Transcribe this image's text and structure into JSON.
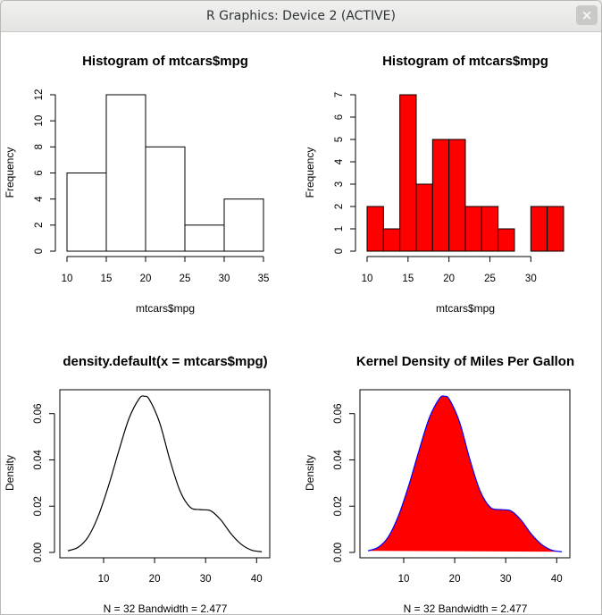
{
  "window": {
    "title": "R Graphics: Device 2 (ACTIVE)",
    "close_glyph": "×"
  },
  "chart_data": [
    {
      "type": "bar",
      "variant": "histogram",
      "title": "Histogram of mtcars$mpg",
      "xlabel": "mtcars$mpg",
      "ylabel": "Frequency",
      "breaks": [
        10,
        15,
        20,
        25,
        30,
        35
      ],
      "values": [
        6,
        12,
        8,
        2,
        4
      ],
      "xlim": [
        10,
        35
      ],
      "ylim": [
        0,
        12
      ],
      "xticks": [
        10,
        15,
        20,
        25,
        30,
        35
      ],
      "yticks": [
        0,
        2,
        4,
        6,
        8,
        10,
        12
      ],
      "fill": "#ffffff",
      "stroke": "#000000"
    },
    {
      "type": "bar",
      "variant": "histogram",
      "title": "Histogram of mtcars$mpg",
      "xlabel": "mtcars$mpg",
      "ylabel": "Frequency",
      "breaks": [
        10,
        12,
        14,
        16,
        18,
        20,
        22,
        24,
        26,
        28,
        30,
        32,
        34
      ],
      "values": [
        2,
        1,
        7,
        3,
        5,
        5,
        2,
        2,
        1,
        0,
        2,
        2
      ],
      "xlim": [
        10,
        34
      ],
      "ylim": [
        0,
        7
      ],
      "xticks": [
        10,
        15,
        20,
        25,
        30
      ],
      "yticks": [
        0,
        1,
        2,
        3,
        4,
        5,
        6,
        7
      ],
      "fill": "#ff0000",
      "stroke": "#000000"
    },
    {
      "type": "line",
      "title": "density.default(x = mtcars$mpg)",
      "xlabel": "N = 32   Bandwidth = 2.477",
      "ylabel": "Density",
      "x": [
        3,
        5,
        7,
        9,
        11,
        13,
        15,
        17,
        18,
        19,
        21,
        23,
        25,
        27,
        29,
        31,
        33,
        35,
        37,
        39,
        41
      ],
      "y": [
        0.0007,
        0.0022,
        0.0068,
        0.016,
        0.029,
        0.044,
        0.058,
        0.0665,
        0.0675,
        0.066,
        0.056,
        0.04,
        0.0265,
        0.0195,
        0.0185,
        0.018,
        0.014,
        0.008,
        0.0035,
        0.001,
        0.0003
      ],
      "xlim": [
        3,
        41
      ],
      "ylim": [
        0,
        0.068
      ],
      "xticks": [
        10,
        20,
        30,
        40
      ],
      "yticks": [
        0.0,
        0.02,
        0.04,
        0.06
      ],
      "ytick_labels": [
        "0.00",
        "0.02",
        "0.04",
        "0.06"
      ],
      "line_color": "#000000",
      "fill": null
    },
    {
      "type": "area",
      "title": "Kernel Density of Miles Per Gallon",
      "xlabel": "N = 32   Bandwidth = 2.477",
      "ylabel": "Density",
      "x": [
        3,
        5,
        7,
        9,
        11,
        13,
        15,
        17,
        18,
        19,
        21,
        23,
        25,
        27,
        29,
        31,
        33,
        35,
        37,
        39,
        41
      ],
      "y": [
        0.0007,
        0.0022,
        0.0068,
        0.016,
        0.029,
        0.044,
        0.058,
        0.0665,
        0.0675,
        0.066,
        0.056,
        0.04,
        0.0265,
        0.0195,
        0.0185,
        0.018,
        0.014,
        0.008,
        0.0035,
        0.001,
        0.0003
      ],
      "xlim": [
        3,
        41
      ],
      "ylim": [
        0,
        0.068
      ],
      "xticks": [
        10,
        20,
        30,
        40
      ],
      "yticks": [
        0.0,
        0.02,
        0.04,
        0.06
      ],
      "ytick_labels": [
        "0.00",
        "0.02",
        "0.04",
        "0.06"
      ],
      "line_color": "#0000ff",
      "fill": "#ff0000"
    }
  ]
}
